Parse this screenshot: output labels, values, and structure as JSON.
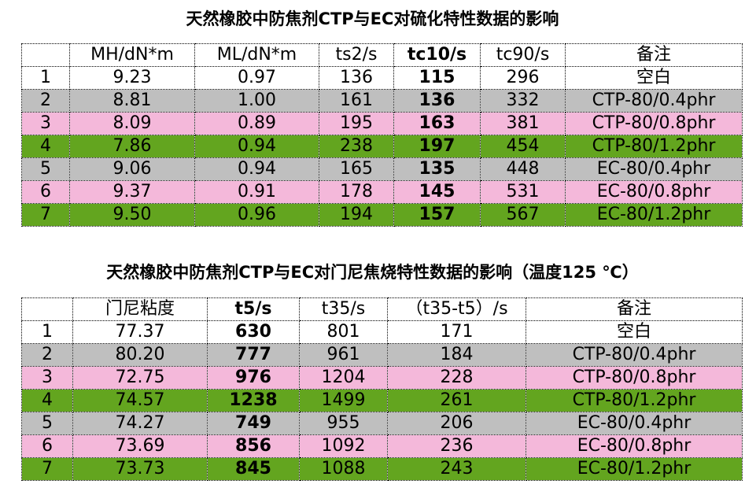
{
  "tables": [
    {
      "title": "天然橡胶中防焦剂CTP与EC对硫化特性数据的影响",
      "header": [
        "MH/dN*m",
        "ML/dN*m",
        "ts2/s",
        "tc10/s",
        "tc90/s",
        "备注"
      ],
      "rows": [
        [
          "1",
          "9.23",
          "0.97",
          "136",
          "115",
          "296",
          "空白"
        ],
        [
          "2",
          "8.81",
          "1.00",
          "161",
          "136",
          "332",
          "CTP-80/0.4phr"
        ],
        [
          "3",
          "8.09",
          "0.89",
          "195",
          "163",
          "381",
          "CTP-80/0.8phr"
        ],
        [
          "4",
          "7.86",
          "0.94",
          "238",
          "197",
          "454",
          "CTP-80/1.2phr"
        ],
        [
          "5",
          "9.06",
          "0.94",
          "165",
          "135",
          "448",
          "EC-80/0.4phr"
        ],
        [
          "6",
          "9.37",
          "0.91",
          "178",
          "145",
          "531",
          "EC-80/0.8phr"
        ],
        [
          "7",
          "9.50",
          "0.96",
          "194",
          "157",
          "567",
          "EC-80/1.2phr"
        ]
      ]
    },
    {
      "title": "天然橡胶中防焦剂CTP与EC对门尼焦烧特性数据的影响（温度125 ℃）",
      "header": [
        "门尼粘度",
        "t5/s",
        "t35/s",
        "（t35-t5）/s",
        "备注"
      ],
      "rows": [
        [
          "1",
          "77.37",
          "630",
          "801",
          "171",
          "空白"
        ],
        [
          "2",
          "80.20",
          "777",
          "961",
          "184",
          "CTP-80/0.4phr"
        ],
        [
          "3",
          "72.75",
          "976",
          "1204",
          "228",
          "CTP-80/0.8phr"
        ],
        [
          "4",
          "74.57",
          "1238",
          "1499",
          "261",
          "CTP-80/1.2phr"
        ],
        [
          "5",
          "74.27",
          "749",
          "955",
          "206",
          "EC-80/0.4phr"
        ],
        [
          "6",
          "73.69",
          "856",
          "1092",
          "236",
          "EC-80/0.8phr"
        ],
        [
          "7",
          "73.73",
          "845",
          "1088",
          "243",
          "EC-80/1.2phr"
        ]
      ]
    }
  ]
}
